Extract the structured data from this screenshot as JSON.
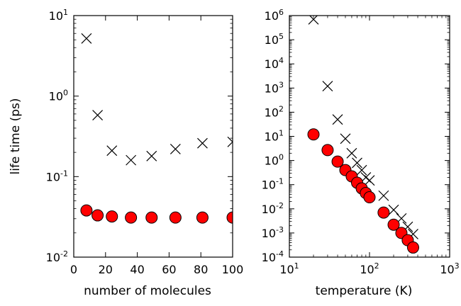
{
  "chart_data": [
    {
      "type": "scatter",
      "xlabel": "number of molecules",
      "ylabel": "life time (ps)",
      "xscale": "linear",
      "yscale": "log",
      "xlim": [
        0,
        100
      ],
      "ylim": [
        0.01,
        10
      ],
      "xticks": [
        0,
        20,
        40,
        60,
        80,
        100
      ],
      "xtick_labels": [
        "0",
        "20",
        "40",
        "60",
        "80",
        "100"
      ],
      "yticks": [
        0.01,
        0.1,
        1,
        10
      ],
      "ytick_labels": [
        {
          "base": "10",
          "exp": "-2"
        },
        {
          "base": "10",
          "exp": "-1"
        },
        {
          "base": "10",
          "exp": "0"
        },
        {
          "base": "10",
          "exp": "1"
        }
      ],
      "grid": false,
      "series": [
        {
          "marker": "x",
          "color": "#000000",
          "x": [
            8,
            15,
            24,
            36,
            49,
            64,
            81,
            100
          ],
          "y": [
            5.2,
            0.58,
            0.21,
            0.16,
            0.18,
            0.22,
            0.26,
            0.27
          ]
        },
        {
          "marker": "circle",
          "color": "#ff0000",
          "x": [
            8,
            15,
            24,
            36,
            49,
            64,
            81,
            100
          ],
          "y": [
            0.038,
            0.033,
            0.032,
            0.031,
            0.031,
            0.031,
            0.031,
            0.031
          ]
        }
      ]
    },
    {
      "type": "scatter",
      "xlabel": "temperature (K)",
      "ylabel": "",
      "xscale": "log",
      "yscale": "log",
      "xlim": [
        10,
        1000
      ],
      "ylim": [
        0.0001,
        1000000
      ],
      "xticks": [
        10,
        100,
        1000
      ],
      "xtick_labels": [
        {
          "base": "10",
          "exp": "1"
        },
        {
          "base": "10",
          "exp": "2"
        },
        {
          "base": "10",
          "exp": "3"
        }
      ],
      "yticks": [
        0.0001,
        0.001,
        0.01,
        0.1,
        1,
        10,
        100,
        1000,
        10000,
        100000,
        1000000
      ],
      "ytick_labels": [
        {
          "base": "10",
          "exp": "-4"
        },
        {
          "base": "10",
          "exp": "-3"
        },
        {
          "base": "10",
          "exp": "-2"
        },
        {
          "base": "10",
          "exp": "-1"
        },
        {
          "base": "10",
          "exp": "0"
        },
        {
          "base": "10",
          "exp": "1"
        },
        {
          "base": "10",
          "exp": "2"
        },
        {
          "base": "10",
          "exp": "3"
        },
        {
          "base": "10",
          "exp": "4"
        },
        {
          "base": "10",
          "exp": "5"
        },
        {
          "base": "10",
          "exp": "6"
        }
      ],
      "grid": false,
      "series": [
        {
          "marker": "x",
          "color": "#000000",
          "x": [
            20,
            30,
            40,
            50,
            60,
            70,
            80,
            90,
            100,
            150,
            200,
            250,
            300,
            350
          ],
          "y": [
            700000,
            1200,
            50,
            8,
            2,
            0.8,
            0.4,
            0.2,
            0.15,
            0.035,
            0.009,
            0.004,
            0.0018,
            0.0009
          ]
        },
        {
          "marker": "circle",
          "color": "#ff0000",
          "x": [
            20,
            30,
            40,
            50,
            60,
            70,
            80,
            90,
            100,
            150,
            200,
            250,
            300,
            350
          ],
          "y": [
            12,
            2.7,
            0.9,
            0.4,
            0.22,
            0.12,
            0.07,
            0.045,
            0.03,
            0.007,
            0.0022,
            0.001,
            0.0005,
            0.00025
          ]
        }
      ]
    }
  ]
}
